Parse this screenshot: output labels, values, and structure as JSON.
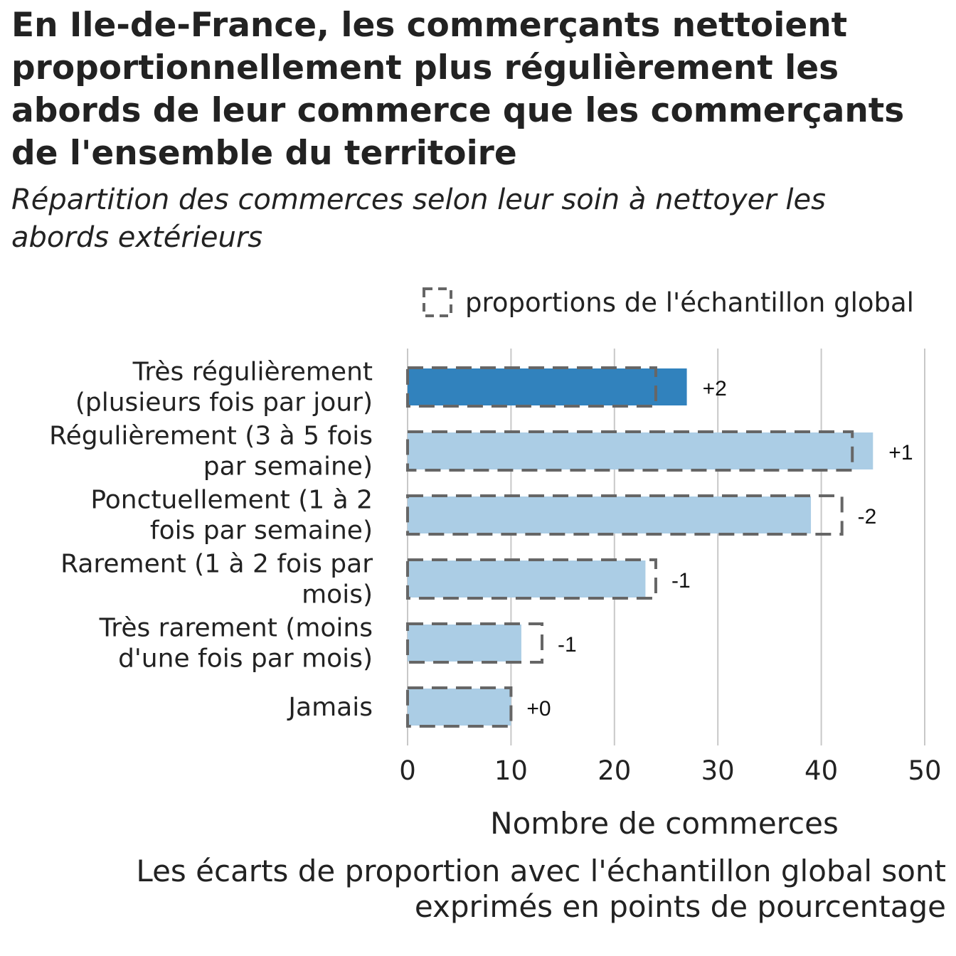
{
  "chart_data": {
    "type": "bar",
    "orientation": "horizontal",
    "title": "En Ile-de-France, les commerçants nettoient proportionnellement plus régulièrement les abords de leur commerce que les commerçants de l'ensemble du territoire",
    "subtitle": "Répartition des commerces selon leur soin à nettoyer les abords extérieurs",
    "xlabel": "Nombre de commerces",
    "ylabel": "",
    "xlim": [
      0,
      50
    ],
    "x_ticks": [
      "0",
      "10",
      "20",
      "30",
      "40",
      "50"
    ],
    "grid": "vertical",
    "legend": {
      "label": "proportions de l'échantillon global",
      "placement": "top-right"
    },
    "note": "Les écarts de proportion avec l'échantillon global sont exprimés en points de pourcentage",
    "categories": [
      [
        "Très régulièrement",
        "(plusieurs fois par jour)"
      ],
      [
        "Régulièrement (3 à 5 fois",
        "par semaine)"
      ],
      [
        "Ponctuellement (1 à 2",
        "fois par semaine)"
      ],
      [
        "Rarement (1 à 2 fois par",
        "mois)"
      ],
      [
        "Très rarement (moins",
        "d'une fois par mois)"
      ],
      [
        "Jamais"
      ]
    ],
    "series": [
      {
        "name": "",
        "values": [
          27,
          45,
          39,
          23,
          11,
          10
        ]
      },
      {
        "name": "proportions de l'échantillon global",
        "values": [
          24,
          43,
          42,
          24,
          13,
          10
        ]
      }
    ],
    "deltas": [
      "+2",
      "+1",
      "-2",
      "-1",
      "-1",
      "+0"
    ],
    "colors": {
      "highlight": "#3182bd",
      "bar": "#abcde5",
      "outline": "#666666",
      "grid": "#c8c8c8",
      "text": "#222222"
    }
  }
}
